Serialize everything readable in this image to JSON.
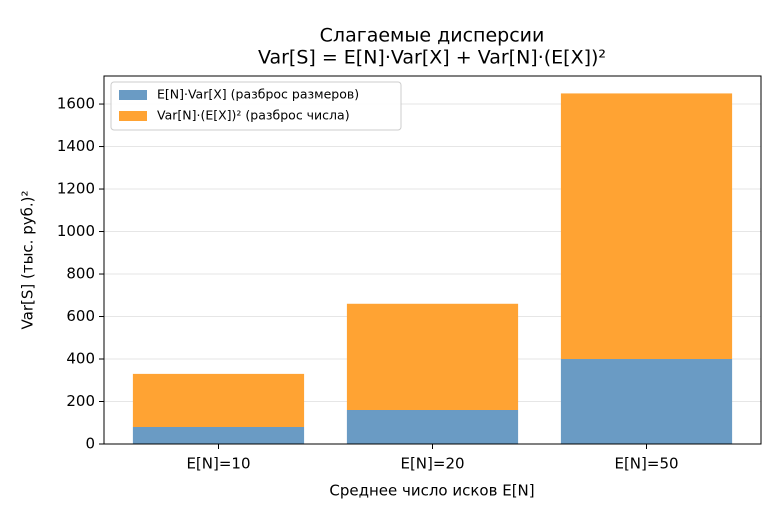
{
  "chart_data": {
    "type": "stacked_bar",
    "title": "Слагаемые дисперсии",
    "subtitle": "Var[S] = E[N]·Var[X] + Var[N]·(E[X])²",
    "xlabel": "Среднее число исков E[N]",
    "ylabel": "Var[S] (тыс. руб.)²",
    "categories": [
      "E[N]=10",
      "E[N]=20",
      "E[N]=50"
    ],
    "series": [
      {
        "name": "E[N]·Var[X] (разброс размеров)",
        "color": "#6a9bc4",
        "values": [
          80,
          160,
          400
        ]
      },
      {
        "name": "Var[N]·(E[X])² (разброс числа)",
        "color": "#ffa333",
        "values": [
          250,
          500,
          1250
        ]
      }
    ],
    "ylim": [
      0,
      1732
    ],
    "yticks": [
      0,
      200,
      400,
      600,
      800,
      1000,
      1200,
      1400,
      1600
    ],
    "grid": true,
    "legend": "upper-left"
  }
}
